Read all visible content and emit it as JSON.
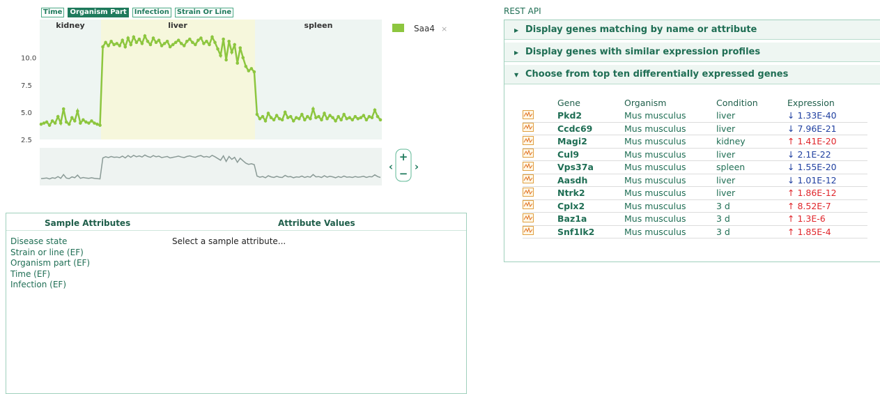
{
  "chart_data": {
    "type": "line",
    "filters": [
      "Time",
      "Organism Part",
      "Infection",
      "Strain Or Line"
    ],
    "regions": [
      "kidney",
      "liver",
      "spleen"
    ],
    "ylim": [
      2.5,
      13.5
    ],
    "yticks": [
      2.5,
      {
        "value": 5,
        "label": "5.0"
      },
      {
        "value": 7.5,
        "label": "7.5"
      },
      {
        "value": 10,
        "label": "10.0"
      }
    ],
    "series": [
      {
        "name": "Saa4",
        "color": "#8dc63f",
        "values": [
          3.9,
          4.0,
          4.1,
          3.8,
          4.2,
          4.0,
          4.6,
          4.0,
          5.3,
          4.1,
          3.9,
          4.5,
          4.2,
          5.1,
          4.0,
          4.3,
          4.1,
          4.0,
          4.2,
          4.0,
          3.9,
          3.8,
          11.0,
          11.4,
          11.1,
          11.5,
          11.2,
          11.3,
          11.1,
          11.6,
          11.0,
          11.8,
          11.2,
          11.9,
          11.4,
          11.7,
          11.3,
          12.0,
          11.5,
          11.2,
          11.8,
          11.4,
          11.6,
          11.1,
          11.3,
          11.5,
          11.0,
          11.2,
          11.4,
          11.6,
          11.3,
          11.1,
          11.5,
          11.7,
          11.4,
          11.2,
          11.6,
          11.8,
          11.3,
          11.5,
          11.2,
          11.9,
          11.4,
          10.8,
          10.2,
          11.7,
          9.8,
          11.5,
          10.5,
          11.2,
          9.5,
          10.9,
          10.0,
          9.2,
          8.8,
          9.0,
          8.7,
          4.8,
          4.4,
          4.6,
          4.2,
          4.9,
          4.5,
          4.3,
          4.7,
          4.4,
          4.3,
          5.0,
          4.5,
          4.6,
          4.2,
          4.5,
          4.4,
          4.8,
          4.3,
          4.6,
          4.4,
          5.3,
          4.5,
          4.6,
          4.3,
          4.9,
          4.4,
          4.7,
          4.5,
          4.2,
          4.6,
          4.3,
          4.8,
          4.4,
          4.5,
          4.3,
          4.6,
          4.4,
          4.5,
          4.7,
          4.3,
          4.6,
          4.5,
          5.2,
          4.6,
          4.3
        ]
      }
    ]
  },
  "sample_attributes": {
    "headers": [
      "Sample Attributes",
      "Attribute Values"
    ],
    "attributes": [
      "Disease state",
      "Strain or line (EF)",
      "Organism part (EF)",
      "Time (EF)",
      "Infection (EF)"
    ],
    "placeholder": "Select a sample attribute..."
  },
  "rest_api": {
    "title": "REST API",
    "sections": [
      "Display genes matching by name or attribute",
      "Display genes with similar expression profiles",
      "Choose from top ten differentially expressed genes"
    ],
    "table": {
      "columns": [
        "Gene",
        "Organism",
        "Condition",
        "Expression"
      ],
      "rows": [
        [
          "Pkd2",
          "Mus musculus",
          "liver",
          "↓ 1.33E-40"
        ],
        [
          "Ccdc69",
          "Mus musculus",
          "liver",
          "↓ 7.96E-21"
        ],
        [
          "Magi2",
          "Mus musculus",
          "kidney",
          "↑ 1.41E-20"
        ],
        [
          "Cul9",
          "Mus musculus",
          "liver",
          "↓ 2.1E-22"
        ],
        [
          "Vps37a",
          "Mus musculus",
          "spleen",
          "↓ 1.55E-20"
        ],
        [
          "Aasdh",
          "Mus musculus",
          "liver",
          "↓ 1.01E-12"
        ],
        [
          "Ntrk2",
          "Mus musculus",
          "liver",
          "↑ 1.86E-12"
        ],
        [
          "Cplx2",
          "Mus musculus",
          "3 d",
          "↑ 8.52E-7"
        ],
        [
          "Baz1a",
          "Mus musculus",
          "3 d",
          "↑ 1.3E-6"
        ],
        [
          "Snf1lk2",
          "Mus musculus",
          "3 d",
          "↑ 1.85E-4"
        ]
      ]
    }
  }
}
